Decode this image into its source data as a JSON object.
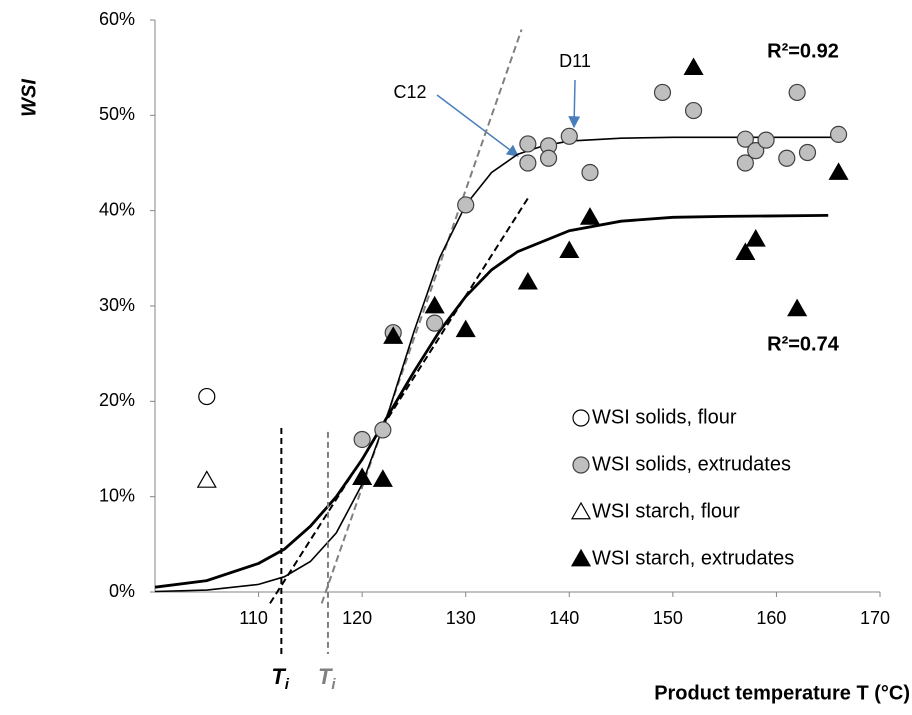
{
  "chart_data": {
    "type": "scatter",
    "ylabel": "WSI",
    "xlabel": "Product temperature T (°C)",
    "xlim": [
      100,
      170
    ],
    "xticks": [
      110,
      120,
      130,
      140,
      150,
      160,
      170
    ],
    "ylim": [
      0,
      60
    ],
    "yticks": [
      {
        "value": 0,
        "label": "0%"
      },
      {
        "value": 10,
        "label": "10%"
      },
      {
        "value": 20,
        "label": "20%"
      },
      {
        "value": 30,
        "label": "30%"
      },
      {
        "value": 40,
        "label": "40%"
      },
      {
        "value": 50,
        "label": "50%"
      },
      {
        "value": 60,
        "label": "60%"
      }
    ],
    "grid": false,
    "legend": "lower right",
    "series": [
      {
        "name": "WSI solids, flour",
        "marker": "circle",
        "color": "#ffffff",
        "x": [
          105
        ],
        "values": [
          20.5
        ]
      },
      {
        "name": "WSI solids, extrudates",
        "marker": "circle",
        "color": "#bfbfbf",
        "x": [
          120,
          122,
          123,
          127,
          130,
          136,
          136,
          138,
          138,
          140,
          142,
          149,
          152,
          157,
          157,
          158,
          159,
          161,
          162,
          163,
          166
        ],
        "values": [
          16,
          17,
          27.2,
          28.2,
          40.6,
          47,
          45,
          46.8,
          45.5,
          47.8,
          44,
          52.4,
          50.5,
          47.5,
          45,
          46.3,
          47.4,
          45.5,
          52.4,
          46.1,
          48
        ]
      },
      {
        "name": "WSI starch, flour",
        "marker": "triangle",
        "color": "#ffffff",
        "x": [
          105
        ],
        "values": [
          11.7
        ]
      },
      {
        "name": "WSI starch, extrudates",
        "marker": "triangle",
        "color": "#000000",
        "x": [
          120,
          122,
          123,
          127,
          130,
          136,
          140,
          142,
          152,
          157,
          158,
          162,
          166
        ],
        "values": [
          12,
          11.8,
          26.8,
          30,
          27.5,
          32.5,
          35.8,
          39.3,
          55,
          35.6,
          37,
          29.7,
          44
        ]
      }
    ],
    "fits": [
      {
        "color": "#000000",
        "width": 1.6,
        "x": [
          100,
          105,
          110,
          112.5,
          115,
          117.5,
          120,
          122.5,
          125,
          127.5,
          130,
          132.5,
          135,
          137.5,
          140,
          145,
          150,
          166
        ],
        "values": [
          0.05,
          0.2,
          0.8,
          1.6,
          3.2,
          6.2,
          11.3,
          18.7,
          27.3,
          35.1,
          40.6,
          44,
          45.9,
          46.8,
          47.3,
          47.6,
          47.7,
          47.7
        ]
      },
      {
        "color": "#000000",
        "width": 2.8,
        "x": [
          100,
          105,
          110,
          112.5,
          115,
          117.5,
          120,
          122.5,
          125,
          127.5,
          130,
          132.5,
          135,
          140,
          145,
          150,
          155,
          165
        ],
        "values": [
          0.5,
          1.2,
          3,
          4.5,
          6.9,
          10,
          13.9,
          18.5,
          23.1,
          27.4,
          31,
          33.8,
          35.7,
          37.9,
          38.9,
          39.3,
          39.4,
          39.5
        ]
      }
    ],
    "tangents": [
      {
        "color": "#000000",
        "x": [
          111.1,
          136
        ],
        "values": [
          -1.2,
          41.3
        ]
      },
      {
        "color": "#808080",
        "x": [
          116.1,
          135.4
        ],
        "values": [
          -1.2,
          59
        ]
      }
    ],
    "ti_markers": [
      {
        "label": "T",
        "sub": "i",
        "color": "#000000",
        "x": 112.2,
        "top": 17.2
      },
      {
        "label": "T",
        "sub": "i",
        "color": "#808080",
        "x": 116.7,
        "top": 16.8
      }
    ],
    "annotations": [
      {
        "text": "C12"
      },
      {
        "text": "D11"
      },
      {
        "text": "R²=0.92"
      },
      {
        "text": "R²=0.74"
      }
    ]
  }
}
